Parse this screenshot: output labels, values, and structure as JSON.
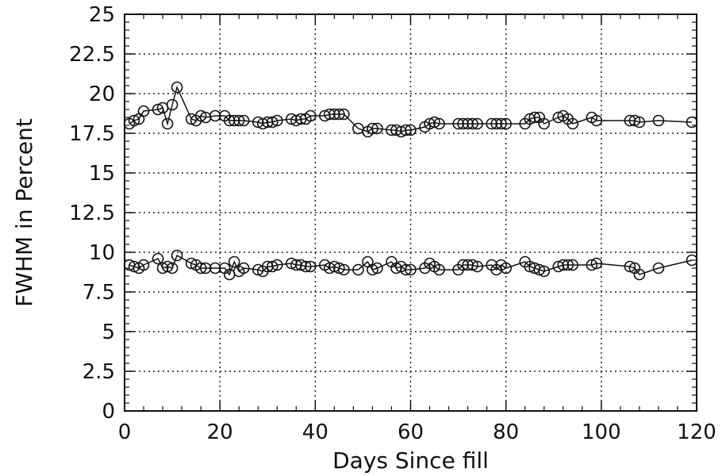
{
  "chart_data": {
    "type": "scatter",
    "title": "",
    "xlabel": "Days Since fill",
    "ylabel": "FWHM in Percent",
    "xlim": [
      0,
      120
    ],
    "ylim": [
      0,
      25
    ],
    "grid": true,
    "grid_style": "dotted",
    "x_ticks": [
      0,
      20,
      40,
      60,
      80,
      100,
      120
    ],
    "x_tick_labels": [
      "0",
      "20",
      "40",
      "60",
      "80",
      "100",
      "120"
    ],
    "y_ticks": [
      0,
      2.5,
      5,
      7.5,
      10,
      12.5,
      15,
      17.5,
      20,
      22.5,
      25
    ],
    "y_tick_labels": [
      "0",
      "2.5",
      "5",
      "7.5",
      "10",
      "12.5",
      "15",
      "17.5",
      "20",
      "22.5",
      "25"
    ],
    "marker": "open-circle",
    "connected_lines": true,
    "colors": {
      "mark": "#111111",
      "grid": "#222222",
      "background": "#ffffff"
    },
    "series": [
      {
        "x": [
          1,
          2,
          3,
          4,
          7,
          8,
          9,
          10,
          11,
          14,
          15,
          16,
          17,
          19,
          21,
          22,
          23,
          24,
          25,
          28,
          29,
          30,
          31,
          32,
          35,
          36,
          37,
          38,
          39,
          42,
          43,
          44,
          45,
          46,
          49,
          51,
          52,
          53,
          56,
          57,
          58,
          59,
          60,
          63,
          64,
          65,
          66,
          70,
          71,
          72,
          73,
          74,
          77,
          78,
          79,
          80,
          84,
          85,
          86,
          87,
          88,
          91,
          92,
          93,
          94,
          98,
          99,
          106,
          107,
          108,
          112,
          119
        ],
        "values": [
          18.1,
          18.3,
          18.4,
          18.9,
          19.0,
          19.1,
          18.1,
          19.3,
          20.4,
          18.4,
          18.3,
          18.6,
          18.5,
          18.6,
          18.6,
          18.3,
          18.3,
          18.3,
          18.3,
          18.2,
          18.1,
          18.2,
          18.2,
          18.3,
          18.4,
          18.3,
          18.4,
          18.4,
          18.6,
          18.6,
          18.7,
          18.7,
          18.7,
          18.7,
          17.8,
          17.6,
          17.8,
          17.8,
          17.7,
          17.7,
          17.6,
          17.7,
          17.7,
          17.9,
          18.1,
          18.2,
          18.1,
          18.1,
          18.1,
          18.1,
          18.1,
          18.1,
          18.1,
          18.1,
          18.1,
          18.1,
          18.1,
          18.4,
          18.5,
          18.5,
          18.1,
          18.5,
          18.6,
          18.4,
          18.1,
          18.5,
          18.3,
          18.3,
          18.3,
          18.2,
          18.3,
          18.2
        ]
      },
      {
        "x": [
          1,
          2,
          3,
          4,
          7,
          8,
          9,
          10,
          11,
          14,
          15,
          16,
          17,
          19,
          21,
          22,
          23,
          24,
          25,
          28,
          29,
          30,
          31,
          32,
          35,
          36,
          37,
          38,
          39,
          42,
          43,
          44,
          45,
          46,
          49,
          51,
          52,
          53,
          56,
          57,
          58,
          59,
          60,
          63,
          64,
          65,
          66,
          70,
          71,
          72,
          73,
          74,
          77,
          78,
          79,
          80,
          84,
          85,
          86,
          87,
          88,
          91,
          92,
          93,
          94,
          98,
          99,
          106,
          107,
          108,
          112,
          119
        ],
        "values": [
          9.2,
          9.1,
          9.0,
          9.2,
          9.6,
          9.0,
          9.1,
          9.0,
          9.8,
          9.3,
          9.2,
          9.0,
          9.0,
          9.0,
          9.0,
          8.6,
          9.4,
          8.8,
          9.0,
          8.9,
          8.8,
          9.1,
          9.1,
          9.2,
          9.3,
          9.2,
          9.2,
          9.1,
          9.1,
          9.2,
          9.0,
          9.1,
          9.0,
          8.9,
          8.9,
          9.4,
          8.9,
          9.0,
          9.4,
          9.0,
          9.1,
          8.9,
          8.9,
          9.0,
          9.3,
          9.1,
          8.9,
          8.9,
          9.2,
          9.2,
          9.2,
          9.1,
          9.2,
          8.9,
          9.2,
          9.0,
          9.4,
          9.1,
          9.0,
          8.9,
          8.8,
          9.1,
          9.2,
          9.2,
          9.2,
          9.2,
          9.3,
          9.1,
          9.0,
          8.6,
          9.0,
          9.5
        ]
      }
    ]
  }
}
